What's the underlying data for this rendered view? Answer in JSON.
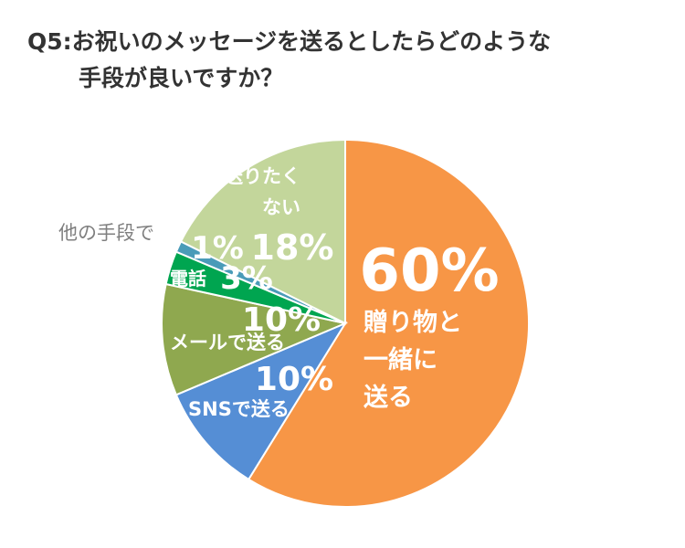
{
  "title": {
    "line1": "Q5:お祝いのメッセージを送るとしたらどのような",
    "line2": "手段が良いですか？"
  },
  "chart_data": {
    "type": "pie",
    "title": "Q5:お祝いのメッセージを送るとしたらどのような手段が良いですか？",
    "slices": [
      {
        "label": "贈り物と一緒に送る",
        "label_lines": [
          "贈り物と",
          "一緒に",
          "送る"
        ],
        "value": 60,
        "value_label": "60%",
        "color": "#f79646"
      },
      {
        "label": "SNSで送る",
        "label_lines": [
          "SNSで送る"
        ],
        "value": 10,
        "value_label": "10%",
        "color": "#558ed5"
      },
      {
        "label": "メールで送る",
        "label_lines": [
          "メールで送る"
        ],
        "value": 10,
        "value_label": "10%",
        "color": "#8fa84f"
      },
      {
        "label": "電話",
        "label_lines": [
          "電話"
        ],
        "value": 3,
        "value_label": "3%",
        "color": "#00a550"
      },
      {
        "label": "他の手段で",
        "label_lines": [
          "他の手段で"
        ],
        "value": 1,
        "value_label": "1%",
        "color": "#4a9bb8"
      },
      {
        "label": "送りたくない",
        "label_lines": [
          "送りたく",
          "ない"
        ],
        "value": 18,
        "value_label": "18%",
        "color": "#c3d69b"
      }
    ]
  }
}
